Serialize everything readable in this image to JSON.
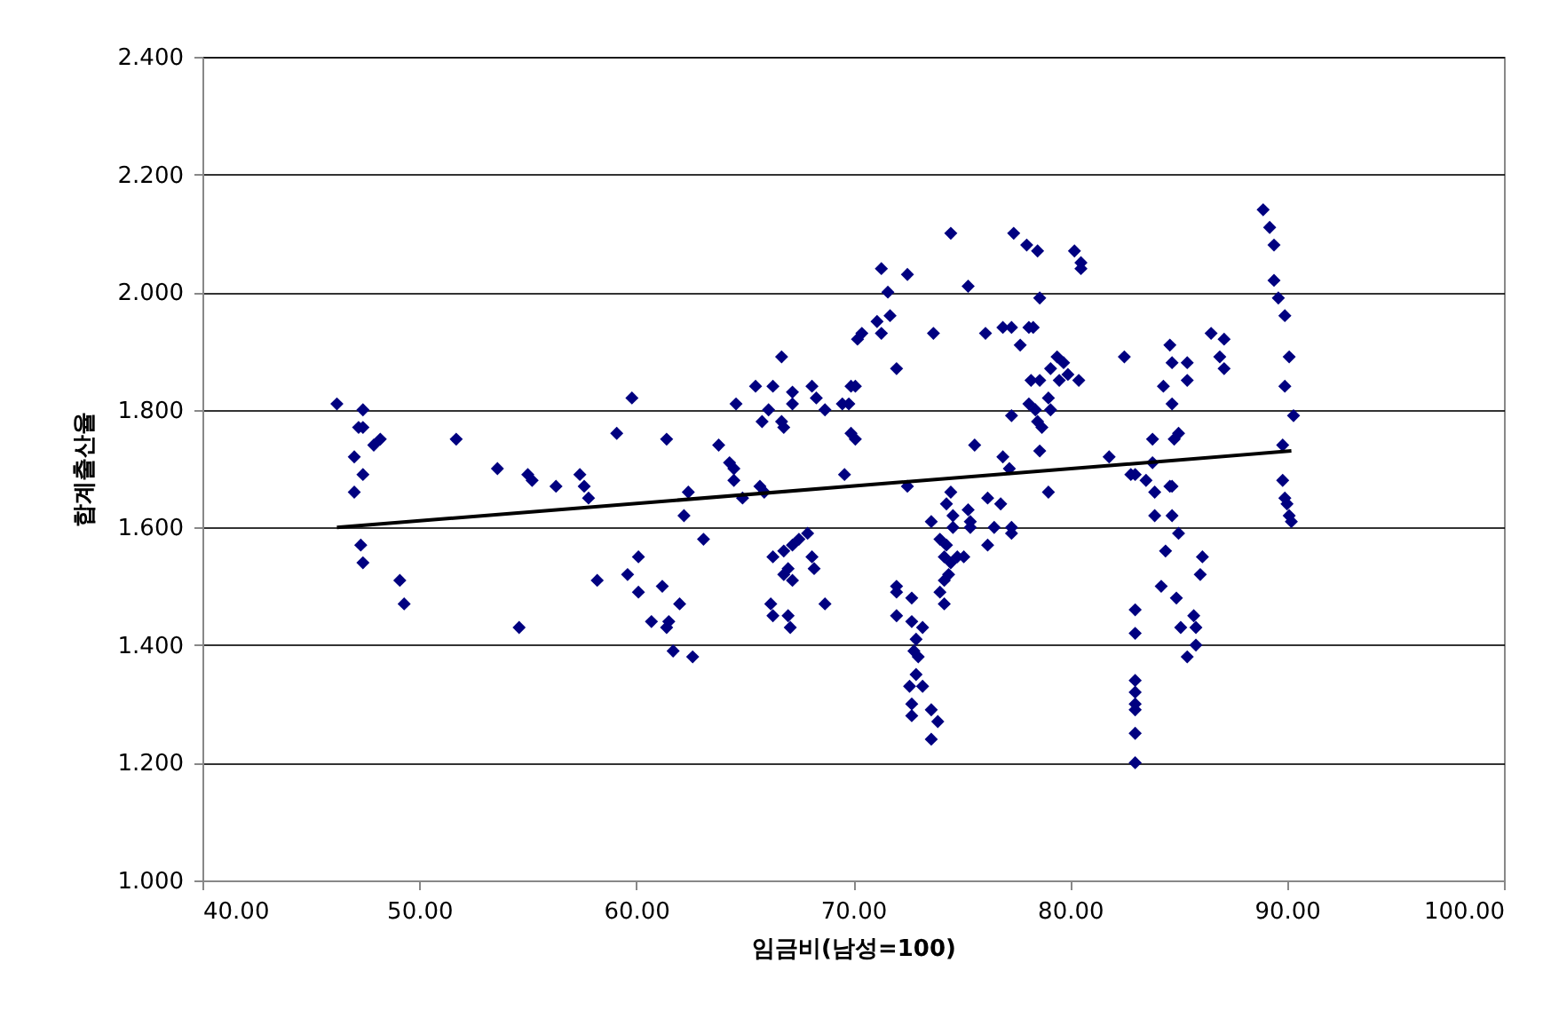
{
  "chart_data": {
    "type": "scatter",
    "xlabel": "임금비(남성=100)",
    "ylabel": "합계출산율",
    "xlim": [
      40,
      100
    ],
    "ylim": [
      1,
      2.4
    ],
    "xticks": [
      {
        "value": 40,
        "label": "40.00"
      },
      {
        "value": 50,
        "label": "50.00"
      },
      {
        "value": 60,
        "label": "60.00"
      },
      {
        "value": 70,
        "label": "70.00"
      },
      {
        "value": 80,
        "label": "80.00"
      },
      {
        "value": 90,
        "label": "90.00"
      },
      {
        "value": 100,
        "label": "100.00"
      }
    ],
    "yticks": [
      {
        "value": 1,
        "label": "1.000"
      },
      {
        "value": 1.2,
        "label": "1.200"
      },
      {
        "value": 1.4,
        "label": "1.400"
      },
      {
        "value": 1.6,
        "label": "1.600"
      },
      {
        "value": 1.8,
        "label": "1.800"
      },
      {
        "value": 2,
        "label": "2.000"
      },
      {
        "value": 2.2,
        "label": "2.200"
      },
      {
        "value": 2.4,
        "label": "2.400"
      }
    ],
    "grid": "y",
    "marker": "diamond",
    "series": [
      {
        "color": "#000080",
        "x": [
          46.2,
          47.4,
          47.2,
          47.4,
          47.0,
          47.4,
          47.0,
          47.9,
          48.2,
          51.7,
          53.6,
          55.0,
          55.2,
          56.3,
          57.4,
          57.6,
          57.8,
          59.1,
          59.8,
          61.4,
          62.4,
          62.2,
          63.1,
          63.8,
          64.3,
          64.5,
          64.6,
          64.9,
          47.3,
          47.4,
          49.1,
          49.3,
          54.6,
          58.2,
          59.6,
          60.1,
          60.1,
          61.2,
          62.0,
          60.7,
          61.4,
          61.5,
          61.7,
          62.6,
          74.5,
          77.4,
          78.0,
          78.5,
          80.2,
          80.5,
          80.5,
          71.3,
          72.5,
          71.6,
          75.3,
          78.6,
          71.7,
          71.1,
          71.3,
          70.4,
          70.2,
          73.7,
          76.1,
          76.9,
          77.3,
          77.7,
          78.1,
          78.3,
          66.7,
          72.0,
          79.4,
          79.7,
          79.9,
          80.4,
          79.1,
          79.5,
          78.2,
          78.6,
          78.1,
          78.4,
          79.0,
          79.1,
          77.3,
          78.5,
          78.7,
          65.5,
          66.3,
          67.2,
          68.1,
          68.3,
          70.1,
          69.9,
          66.1,
          65.8,
          66.7,
          66.8,
          67.2,
          68.7,
          69.5,
          69.8,
          69.9,
          70.1,
          64.5,
          65.7,
          65.9,
          69.6,
          72.5,
          75.6,
          76.9,
          77.2,
          78.6,
          81.8,
          79.0,
          74.5,
          74.3,
          75.3,
          74.6,
          75.4,
          76.2,
          76.8,
          73.6,
          74.6,
          75.4,
          76.5,
          77.3,
          77.3,
          76.2,
          67.9,
          67.5,
          67.2,
          66.8,
          66.3,
          68.1,
          68.2,
          67.0,
          66.8,
          67.2,
          74.0,
          74.3,
          74.2,
          74.8,
          75.1,
          74.5,
          74.4,
          74.2,
          74.0,
          74.2,
          66.2,
          66.3,
          67.0,
          67.1,
          68.7,
          72.0,
          72.0,
          72.7,
          72.0,
          72.7,
          73.2,
          72.9,
          72.8,
          73.0,
          72.9,
          72.6,
          73.2,
          72.7,
          72.7,
          73.6,
          73.9,
          73.6,
          88.9,
          89.2,
          89.4,
          89.4,
          89.6,
          89.9,
          90.1,
          89.9,
          90.3,
          89.8,
          89.8,
          89.9,
          90.0,
          90.1,
          90.2,
          82.5,
          86.5,
          87.1,
          84.6,
          84.7,
          85.4,
          84.3,
          85.4,
          86.9,
          87.1,
          84.7,
          85.0,
          84.8,
          83.8,
          82.8,
          83.0,
          83.5,
          83.8,
          83.9,
          84.7,
          84.6,
          83.9,
          84.7,
          85.0,
          84.4,
          86.1,
          86.0,
          84.2,
          84.9,
          83.0,
          83.0,
          85.1,
          85.7,
          85.8,
          85.8,
          85.4,
          83.0,
          83.0,
          83.0,
          83.0,
          83.0,
          83.0
        ],
        "values": [
          1.81,
          1.8,
          1.77,
          1.77,
          1.72,
          1.69,
          1.66,
          1.74,
          1.75,
          1.75,
          1.7,
          1.69,
          1.68,
          1.67,
          1.69,
          1.67,
          1.65,
          1.76,
          1.82,
          1.75,
          1.66,
          1.62,
          1.58,
          1.74,
          1.71,
          1.68,
          1.81,
          1.65,
          1.57,
          1.54,
          1.51,
          1.47,
          1.43,
          1.51,
          1.52,
          1.55,
          1.49,
          1.5,
          1.47,
          1.44,
          1.43,
          1.44,
          1.39,
          1.38,
          2.1,
          2.1,
          2.08,
          2.07,
          2.07,
          2.05,
          2.04,
          2.04,
          2.03,
          2.0,
          2.01,
          1.99,
          1.96,
          1.95,
          1.93,
          1.93,
          1.92,
          1.93,
          1.93,
          1.94,
          1.94,
          1.91,
          1.94,
          1.94,
          1.89,
          1.87,
          1.89,
          1.88,
          1.86,
          1.85,
          1.87,
          1.85,
          1.85,
          1.85,
          1.81,
          1.8,
          1.82,
          1.8,
          1.79,
          1.78,
          1.77,
          1.84,
          1.84,
          1.83,
          1.84,
          1.82,
          1.84,
          1.84,
          1.8,
          1.78,
          1.78,
          1.77,
          1.81,
          1.8,
          1.81,
          1.81,
          1.76,
          1.75,
          1.7,
          1.67,
          1.66,
          1.69,
          1.67,
          1.74,
          1.72,
          1.7,
          1.73,
          1.72,
          1.66,
          1.66,
          1.64,
          1.63,
          1.62,
          1.61,
          1.65,
          1.64,
          1.61,
          1.6,
          1.6,
          1.6,
          1.6,
          1.59,
          1.57,
          1.59,
          1.58,
          1.57,
          1.56,
          1.55,
          1.55,
          1.53,
          1.53,
          1.52,
          1.51,
          1.58,
          1.57,
          1.55,
          1.55,
          1.55,
          1.54,
          1.52,
          1.51,
          1.49,
          1.47,
          1.47,
          1.45,
          1.45,
          1.43,
          1.47,
          1.5,
          1.49,
          1.48,
          1.45,
          1.44,
          1.43,
          1.41,
          1.39,
          1.38,
          1.35,
          1.33,
          1.33,
          1.3,
          1.28,
          1.29,
          1.27,
          1.24,
          2.14,
          2.11,
          2.08,
          2.02,
          1.99,
          1.96,
          1.89,
          1.84,
          1.79,
          1.74,
          1.68,
          1.65,
          1.64,
          1.62,
          1.61,
          1.89,
          1.93,
          1.92,
          1.91,
          1.88,
          1.88,
          1.84,
          1.85,
          1.89,
          1.87,
          1.81,
          1.76,
          1.75,
          1.75,
          1.69,
          1.69,
          1.68,
          1.71,
          1.66,
          1.67,
          1.67,
          1.62,
          1.62,
          1.59,
          1.56,
          1.55,
          1.52,
          1.5,
          1.48,
          1.46,
          1.42,
          1.43,
          1.45,
          1.43,
          1.4,
          1.38,
          1.34,
          1.32,
          1.3,
          1.29,
          1.25,
          1.2
        ]
      },
      {
        "type": "line",
        "marker": "none",
        "color": "#000000",
        "x": [
          46.2,
          90.2
        ],
        "values": [
          1.6,
          1.73
        ]
      }
    ]
  }
}
